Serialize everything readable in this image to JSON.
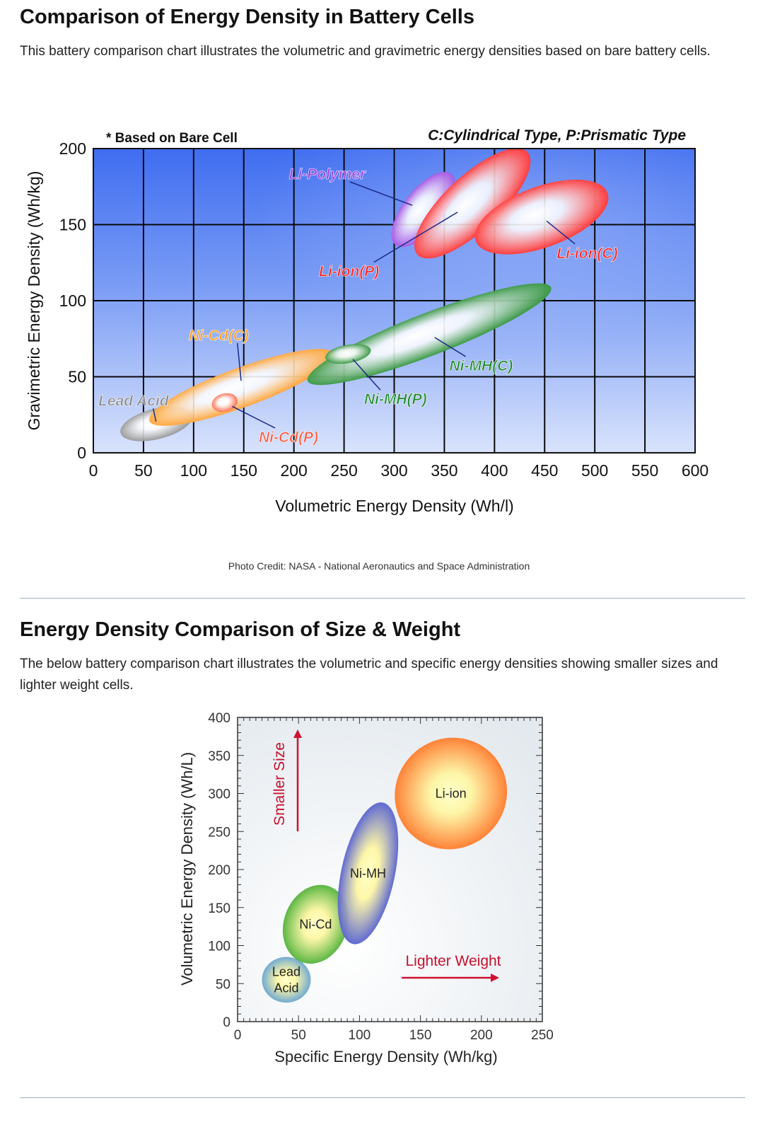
{
  "sections": [
    {
      "title": "Comparison of Energy Density in Battery Cells",
      "description": "This battery comparison chart illustrates the volumetric and gravimetric energy densities based on bare battery cells.",
      "photo_credit": "Photo Credit: NASA - National Aeronautics and Space Administration"
    },
    {
      "title": "Energy Density Comparison of Size & Weight",
      "description": "The below battery comparison chart illustrates the volumetric and specific energy densities showing smaller sizes and lighter weight cells."
    }
  ],
  "chart_data": [
    {
      "type": "scatter",
      "note_left": "* Based on Bare Cell",
      "note_right": "C:Cylindrical Type, P:Prismatic Type",
      "xlabel": "Volumetric Energy Density (Wh/l)",
      "ylabel": "Gravimetric Energy Density (Wh/kg)",
      "xlim": [
        0,
        600
      ],
      "ylim": [
        0,
        200
      ],
      "x_ticks": [
        "0",
        "50",
        "100",
        "150",
        "200",
        "250",
        "300",
        "350",
        "400",
        "450",
        "500",
        "550",
        "600"
      ],
      "y_ticks": [
        "0",
        "50",
        "100",
        "150",
        "200"
      ],
      "grid": true,
      "regions": [
        {
          "name": "Lead Acid",
          "cx": 63,
          "cy": 19,
          "rx": 37,
          "ry": 10,
          "angle": 14,
          "color": "#8a8a8a",
          "label_x": 5,
          "label_y": 31
        },
        {
          "name": "Ni-Cd(C)",
          "cx": 148,
          "cy": 43,
          "rx": 98,
          "ry": 13,
          "angle": 20,
          "color": "#ff9a1f",
          "label_x": 95,
          "label_y": 74
        },
        {
          "name": "Ni-Cd(P)",
          "cx": 131,
          "cy": 33,
          "rx": 13,
          "ry": 6,
          "angle": 15,
          "color": "#ff5a3a",
          "label_x": 165,
          "label_y": 7
        },
        {
          "name": "Ni-MH(C)",
          "cx": 335,
          "cy": 78,
          "rx": 130,
          "ry": 14,
          "angle": 21,
          "color": "#1f8a2a",
          "label_x": 355,
          "label_y": 54
        },
        {
          "name": "Ni-MH(P)",
          "cx": 254,
          "cy": 65,
          "rx": 23,
          "ry": 6,
          "angle": 10,
          "color": "#1f8a2a",
          "label_x": 270,
          "label_y": 32
        },
        {
          "name": "Li-Polymer",
          "cx": 329,
          "cy": 160,
          "rx": 45,
          "ry": 13,
          "angle": 52,
          "color": "#9b3fe0",
          "label_x": 195,
          "label_y": 180
        },
        {
          "name": "Li-ion(P)",
          "cx": 378,
          "cy": 164,
          "rx": 75,
          "ry": 18,
          "angle": 43,
          "color": "#ff2020",
          "label_x": 225,
          "label_y": 116
        },
        {
          "name": "Li-ion(C)",
          "cx": 447,
          "cy": 155,
          "rx": 70,
          "ry": 20,
          "angle": 20,
          "color": "#ff2020",
          "label_x": 462,
          "label_y": 128
        }
      ]
    },
    {
      "type": "scatter",
      "xlabel": "Specific Energy Density (Wh/kg)",
      "ylabel": "Volumetric Energy Density (Wh/L)",
      "xlim": [
        0,
        250
      ],
      "ylim": [
        0,
        400
      ],
      "x_ticks": [
        "0",
        "50",
        "100",
        "150",
        "200",
        "250"
      ],
      "y_ticks": [
        "0",
        "50",
        "100",
        "150",
        "200",
        "250",
        "300",
        "350",
        "400"
      ],
      "annotations": [
        "Smaller Size",
        "Lighter Weight"
      ],
      "regions": [
        {
          "name_lines": [
            "Lead",
            "Acid"
          ],
          "cx": 40,
          "cy": 55,
          "rx": 20,
          "ry": 30,
          "angle": 0,
          "color": "#3f8fe0"
        },
        {
          "name_lines": [
            "Ni-Cd"
          ],
          "cx": 64,
          "cy": 128,
          "rx": 26,
          "ry": 53,
          "angle": 20,
          "color": "#22a020"
        },
        {
          "name_lines": [
            "Ni-MH"
          ],
          "cx": 107,
          "cy": 195,
          "rx": 22,
          "ry": 95,
          "angle": 12,
          "color": "#2a3ae0"
        },
        {
          "name_lines": [
            "Li-ion"
          ],
          "cx": 175,
          "cy": 300,
          "rx": 45,
          "ry": 75,
          "angle": 50,
          "color": "#ff5a10"
        }
      ]
    }
  ]
}
